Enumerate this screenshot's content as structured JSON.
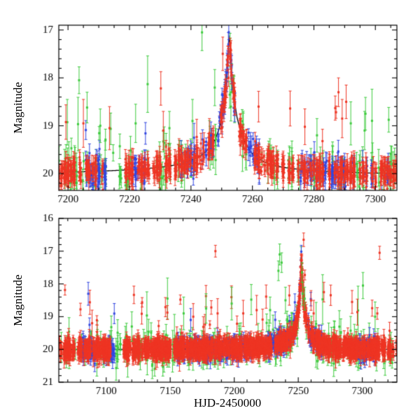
{
  "chart_data": {
    "type": "scatter",
    "description": "Two-panel microlensing light curve, magnitude vs HJD-2450000, three photometric series (red, green, blue) with error bars and a black model curve peaking near HJD 7252",
    "event": {
      "t_peak": 7252.3,
      "peak_mag": 17.1,
      "baseline_mag": 20.0
    },
    "model_curve": {
      "color": "#000000",
      "points": [
        [
          7050,
          20.0
        ],
        [
          7100,
          20.0
        ],
        [
          7150,
          19.99
        ],
        [
          7170,
          19.99
        ],
        [
          7190,
          19.98
        ],
        [
          7200,
          19.97
        ],
        [
          7210,
          19.95
        ],
        [
          7220,
          19.92
        ],
        [
          7228,
          19.88
        ],
        [
          7234,
          19.83
        ],
        [
          7238,
          19.77
        ],
        [
          7242,
          19.67
        ],
        [
          7244,
          19.59
        ],
        [
          7246,
          19.47
        ],
        [
          7247,
          19.39
        ],
        [
          7248,
          19.27
        ],
        [
          7249,
          19.09
        ],
        [
          7250,
          18.84
        ],
        [
          7250.8,
          18.54
        ],
        [
          7251.5,
          18.1
        ],
        [
          7252,
          17.6
        ],
        [
          7252.3,
          17.12
        ],
        [
          7252.6,
          17.3
        ],
        [
          7253,
          17.73
        ],
        [
          7253.5,
          18.12
        ],
        [
          7254,
          18.42
        ],
        [
          7255,
          18.83
        ],
        [
          7256,
          19.08
        ],
        [
          7257,
          19.26
        ],
        [
          7258,
          19.4
        ],
        [
          7259,
          19.5
        ],
        [
          7260,
          19.59
        ],
        [
          7262,
          19.69
        ],
        [
          7264,
          19.76
        ],
        [
          7267,
          19.83
        ],
        [
          7270,
          19.87
        ],
        [
          7275,
          19.91
        ],
        [
          7280,
          19.94
        ],
        [
          7290,
          19.97
        ],
        [
          7300,
          19.99
        ],
        [
          7320,
          20.0
        ]
      ]
    },
    "panels": [
      {
        "ylabel": "Magnitude",
        "xlabel": "",
        "xlim": [
          7197,
          7307
        ],
        "ylim": [
          16.9,
          20.35
        ],
        "xticks": [
          7200,
          7220,
          7240,
          7260,
          7280,
          7300
        ],
        "yticks": [
          17,
          18,
          19,
          20
        ],
        "x_major_step": 20,
        "x_minor_step": 5,
        "y_major_step": 1,
        "y_minor_step": 0.2,
        "seed": 7111,
        "series": [
          {
            "name": "green",
            "color": "#3ecb3e",
            "night_prob": 0.6,
            "density": 3,
            "sigma": 0.22,
            "err_range": [
              0.12,
              0.4
            ],
            "outlier_rate": 0.03,
            "outlier_mag": [
              0.3,
              1.6
            ],
            "windows": null,
            "gaps": null
          },
          {
            "name": "blue",
            "color": "#3246e0",
            "night_prob": 0.75,
            "density": 7,
            "sigma": 0.14,
            "err_range": [
              0.08,
              0.25
            ],
            "outlier_rate": 0.008,
            "outlier_mag": [
              0.3,
              1.0
            ],
            "windows": [
              [
                7204,
                7214
              ],
              [
                7221,
                7225
              ],
              [
                7236,
                7256
              ],
              [
                7259,
                7262
              ],
              [
                7276,
                7304
              ]
            ],
            "gaps": null
          },
          {
            "name": "red",
            "color": "#ee3524",
            "night_prob": 0.8,
            "density": 11,
            "sigma": 0.13,
            "err_range": [
              0.07,
              0.22
            ],
            "outlier_rate": 0.01,
            "outlier_mag": [
              0.4,
              1.6
            ],
            "windows": null,
            "gaps": [
              [
                7214,
                7218
              ]
            ]
          }
        ],
        "outliers": [
          {
            "series": "green",
            "t": 7203.6,
            "mag": 18.05,
            "err": 0.28
          },
          {
            "series": "green",
            "t": 7206.2,
            "mag": 18.62,
            "err": 0.32
          },
          {
            "series": "green",
            "t": 7210.5,
            "mag": 19.0,
            "err": 0.35
          },
          {
            "series": "red",
            "t": 7205.0,
            "mag": 18.95,
            "err": 0.5
          },
          {
            "series": "red",
            "t": 7213.5,
            "mag": 19.05,
            "err": 0.45
          },
          {
            "series": "green",
            "t": 7222.0,
            "mag": 18.95,
            "err": 0.4
          },
          {
            "series": "red",
            "t": 7230.2,
            "mag": 18.22,
            "err": 0.35
          },
          {
            "series": "red",
            "t": 7231.0,
            "mag": 19.1,
            "err": 0.4
          },
          {
            "series": "green",
            "t": 7233.0,
            "mag": 19.05,
            "err": 0.35
          },
          {
            "series": "green",
            "t": 7243.6,
            "mag": 17.05,
            "err": 0.38
          },
          {
            "series": "green",
            "t": 7240.5,
            "mag": 18.9,
            "err": 0.45
          },
          {
            "series": "blue",
            "t": 7241.0,
            "mag": 19.25,
            "err": 0.3
          },
          {
            "series": "blue",
            "t": 7246.5,
            "mag": 19.2,
            "err": 0.28
          },
          {
            "series": "red",
            "t": 7246.0,
            "mag": 19.15,
            "err": 0.3
          },
          {
            "series": "red",
            "t": 7252.2,
            "mag": 18.0,
            "err": 0.18
          },
          {
            "series": "green",
            "t": 7252.6,
            "mag": 18.35,
            "err": 0.28
          },
          {
            "series": "green",
            "t": 7253.0,
            "mag": 18.6,
            "err": 0.3
          },
          {
            "series": "red",
            "t": 7262.0,
            "mag": 18.6,
            "err": 0.32
          },
          {
            "series": "red",
            "t": 7288.0,
            "mag": 18.3,
            "err": 0.3
          },
          {
            "series": "red",
            "t": 7290.5,
            "mag": 18.5,
            "err": 0.35
          },
          {
            "series": "red",
            "t": 7289.2,
            "mag": 18.85,
            "err": 0.4
          },
          {
            "series": "green",
            "t": 7292.0,
            "mag": 18.95,
            "err": 0.45
          },
          {
            "series": "green",
            "t": 7296.5,
            "mag": 19.1,
            "err": 0.4
          },
          {
            "series": "green",
            "t": 7281.0,
            "mag": 19.2,
            "err": 0.35
          }
        ]
      },
      {
        "ylabel": "Magnitude",
        "xlabel": "HJD-2450000",
        "xlim": [
          7063,
          7327
        ],
        "ylim": [
          16,
          21
        ],
        "xticks": [
          7100,
          7150,
          7200,
          7250,
          7300
        ],
        "yticks": [
          16,
          17,
          18,
          19,
          20,
          21
        ],
        "x_major_step": 50,
        "x_minor_step": 10,
        "y_major_step": 1,
        "y_minor_step": 0.2,
        "seed": 987,
        "series": [
          {
            "name": "green",
            "color": "#3ecb3e",
            "night_prob": 0.5,
            "density": 2.5,
            "sigma": 0.24,
            "err_range": [
              0.12,
              0.45
            ],
            "outlier_rate": 0.03,
            "outlier_mag": [
              0.3,
              1.8
            ],
            "windows": null,
            "gaps": null
          },
          {
            "name": "blue",
            "color": "#3246e0",
            "night_prob": 0.8,
            "density": 6,
            "sigma": 0.15,
            "err_range": [
              0.08,
              0.25
            ],
            "outlier_rate": 0.01,
            "outlier_mag": [
              0.3,
              1.2
            ],
            "windows": [
              [
                7082,
                7091
              ],
              [
                7098,
                7106
              ],
              [
                7155,
                7215
              ],
              [
                7224,
                7252
              ],
              [
                7258,
                7268
              ],
              [
                7297,
                7312
              ]
            ],
            "gaps": null
          },
          {
            "name": "red",
            "color": "#ee3524",
            "night_prob": 0.85,
            "density": 13,
            "sigma": 0.14,
            "err_range": [
              0.07,
              0.24
            ],
            "outlier_rate": 0.008,
            "outlier_mag": [
              0.4,
              1.8
            ],
            "windows": null,
            "gaps": [
              [
                7105,
                7112
              ]
            ]
          }
        ],
        "outliers": [
          {
            "series": "blue",
            "t": 7086.0,
            "mag": 18.3,
            "err": 0.35
          },
          {
            "series": "red",
            "t": 7089.0,
            "mag": 19.2,
            "err": 0.4
          },
          {
            "series": "green",
            "t": 7120.0,
            "mag": 19.3,
            "err": 0.45
          },
          {
            "series": "green",
            "t": 7160.5,
            "mag": 18.9,
            "err": 0.5
          },
          {
            "series": "blue",
            "t": 7166.0,
            "mag": 19.1,
            "err": 0.35
          },
          {
            "series": "red",
            "t": 7168.0,
            "mag": 19.0,
            "err": 0.4
          },
          {
            "series": "green",
            "t": 7178.0,
            "mag": 18.75,
            "err": 0.45
          },
          {
            "series": "red",
            "t": 7185.3,
            "mag": 17.0,
            "err": 0.18
          },
          {
            "series": "red",
            "t": 7187.0,
            "mag": 18.9,
            "err": 0.45
          },
          {
            "series": "green",
            "t": 7198.0,
            "mag": 18.6,
            "err": 0.5
          },
          {
            "series": "red",
            "t": 7207.0,
            "mag": 18.9,
            "err": 0.4
          },
          {
            "series": "red",
            "t": 7217.5,
            "mag": 18.8,
            "err": 0.45
          },
          {
            "series": "green",
            "t": 7228.0,
            "mag": 18.8,
            "err": 0.4
          },
          {
            "series": "green",
            "t": 7234.5,
            "mag": 17.6,
            "err": 0.3
          },
          {
            "series": "green",
            "t": 7235.5,
            "mag": 17.1,
            "err": 0.32
          },
          {
            "series": "green",
            "t": 7237.0,
            "mag": 17.35,
            "err": 0.3
          },
          {
            "series": "green",
            "t": 7240.0,
            "mag": 18.5,
            "err": 0.4
          },
          {
            "series": "red",
            "t": 7243.0,
            "mag": 18.35,
            "err": 0.3
          },
          {
            "series": "red",
            "t": 7252.4,
            "mag": 18.0,
            "err": 0.2
          },
          {
            "series": "green",
            "t": 7252.9,
            "mag": 17.65,
            "err": 0.3
          },
          {
            "series": "green",
            "t": 7253.4,
            "mag": 18.3,
            "err": 0.35
          },
          {
            "series": "green",
            "t": 7255.0,
            "mag": 18.45,
            "err": 0.35
          },
          {
            "series": "red",
            "t": 7262.0,
            "mag": 18.9,
            "err": 0.4
          },
          {
            "series": "red",
            "t": 7270.0,
            "mag": 18.25,
            "err": 0.3
          },
          {
            "series": "red",
            "t": 7292.0,
            "mag": 18.55,
            "err": 0.35
          },
          {
            "series": "green",
            "t": 7300.5,
            "mag": 18.05,
            "err": 0.4
          },
          {
            "series": "red",
            "t": 7313.5,
            "mag": 17.05,
            "err": 0.2
          },
          {
            "series": "green",
            "t": 7310.0,
            "mag": 19.0,
            "err": 0.45
          }
        ]
      }
    ]
  }
}
